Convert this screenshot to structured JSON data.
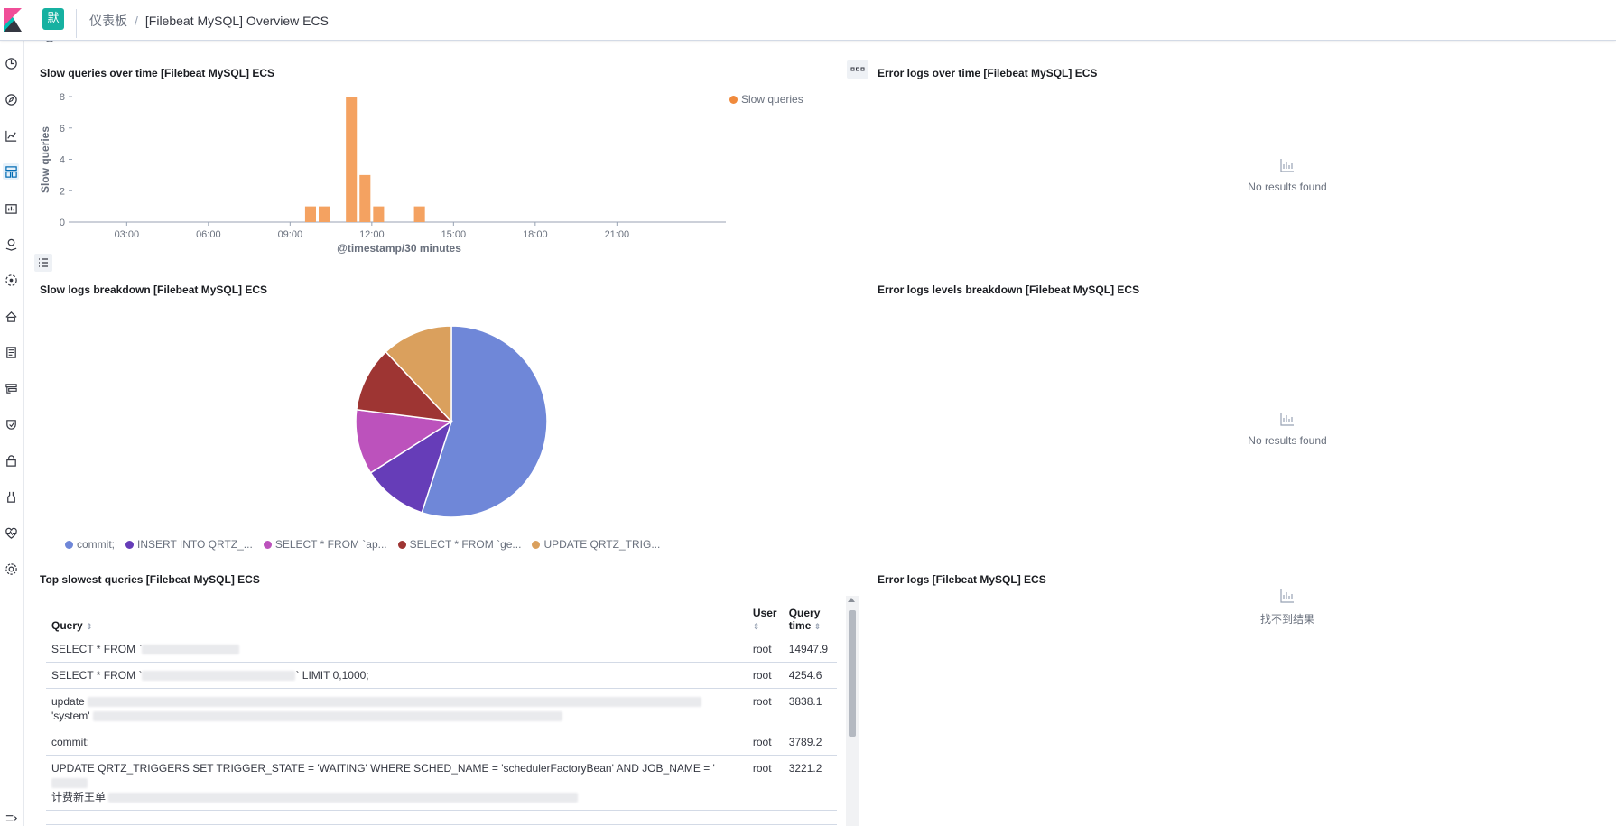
{
  "header": {
    "space_initial": "默",
    "breadcrumbs": [
      "仪表板",
      "[Filebeat MySQL] Overview ECS"
    ]
  },
  "colors": {
    "slow_bar": "#f4a261",
    "legend_slow": "#f08a3c",
    "space_avatar": "#16b1a1",
    "pie": [
      "#6f87d8",
      "#663db8",
      "#bc52bc",
      "#9e3533",
      "#daa05d"
    ]
  },
  "nav_icons": [
    "clock-icon",
    "compass-icon",
    "visualize-icon",
    "dashboard-icon",
    "canvas-icon",
    "maps-icon",
    "ml-icon",
    "infrastructure-icon",
    "logs-icon",
    "apm-icon",
    "uptime-icon",
    "siem-icon",
    "devtools-icon",
    "monitoring-icon",
    "management-icon"
  ],
  "panels": {
    "slow_over_time": {
      "title": "Slow queries over time [Filebeat MySQL] ECS"
    },
    "error_over_time": {
      "title": "Error logs over time [Filebeat MySQL] ECS",
      "empty": "No results found"
    },
    "slow_breakdown": {
      "title": "Slow logs breakdown [Filebeat MySQL] ECS"
    },
    "error_levels": {
      "title": "Error logs levels breakdown [Filebeat MySQL] ECS",
      "empty": "No results found"
    },
    "top_slowest": {
      "title": "Top slowest queries [Filebeat MySQL] ECS"
    },
    "error_logs": {
      "title": "Error logs [Filebeat MySQL] ECS",
      "empty": "找不到结果"
    }
  },
  "chart_data": [
    {
      "type": "bar",
      "title": "",
      "xlabel": "@timestamp/30 minutes",
      "ylabel": "Slow queries",
      "series": [
        {
          "name": "Slow queries",
          "points": [
            {
              "x": "09:30",
              "y": 1
            },
            {
              "x": "10:00",
              "y": 1
            },
            {
              "x": "11:00",
              "y": 8
            },
            {
              "x": "11:30",
              "y": 3
            },
            {
              "x": "12:00",
              "y": 1
            },
            {
              "x": "13:30",
              "y": 1
            }
          ]
        }
      ],
      "x_ticks": [
        "03:00",
        "06:00",
        "09:00",
        "12:00",
        "15:00",
        "18:00",
        "21:00"
      ],
      "y_ticks": [
        0,
        2,
        4,
        6,
        8
      ],
      "ylim": [
        0,
        8
      ],
      "legend_position": "top-right"
    },
    {
      "type": "pie",
      "slices": [
        {
          "label": "commit;",
          "value": 55
        },
        {
          "label": "INSERT INTO QRTZ_...",
          "value": 11
        },
        {
          "label": "SELECT * FROM `ap...",
          "value": 11
        },
        {
          "label": "SELECT * FROM `ge...",
          "value": 11
        },
        {
          "label": "UPDATE QRTZ_TRIG...",
          "value": 12
        }
      ],
      "legend_position": "bottom"
    }
  ],
  "table": {
    "headers": {
      "query": "Query",
      "user": "User",
      "time": "Query time"
    },
    "rows": [
      {
        "query_start": "SELECT * FROM `",
        "query_end": "",
        "user": "root",
        "time": "14947.9"
      },
      {
        "query_start": "SELECT * FROM `",
        "query_end": "` LIMIT 0,1000;",
        "user": "root",
        "time": "4254.6"
      },
      {
        "query_start": "update",
        "query_end": "'system'",
        "user": "root",
        "time": "3838.1"
      },
      {
        "query_start": "commit;",
        "query_end": "",
        "user": "root",
        "time": "3789.2"
      },
      {
        "query_start": "UPDATE QRTZ_TRIGGERS SET TRIGGER_STATE = 'WAITING' WHERE SCHED_NAME = 'schedulerFactoryBean' AND JOB_NAME = '",
        "query_end": "计费新王单",
        "user": "root",
        "time": "3221.2"
      }
    ]
  }
}
